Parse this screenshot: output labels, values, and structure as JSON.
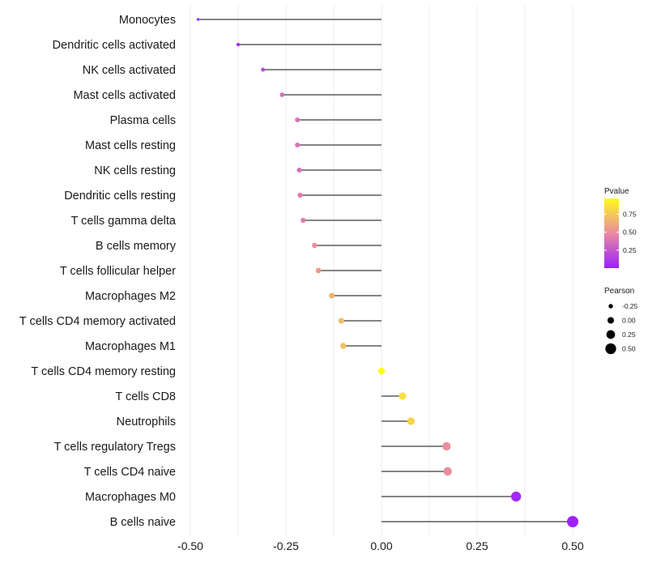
{
  "chart_data": {
    "type": "lollipop",
    "title": "",
    "xlabel": "",
    "ylabel": "",
    "xlim": [
      -0.5,
      0.5
    ],
    "x_ticks": [
      -0.5,
      -0.25,
      0.0,
      0.25,
      0.5
    ],
    "x_tick_labels": [
      "-0.50",
      "-0.25",
      "0.00",
      "0.25",
      "0.50"
    ],
    "grid": "vertical",
    "categories": [
      "Monocytes",
      "Dendritic cells activated",
      "NK cells activated",
      "Mast cells activated",
      "Plasma cells",
      "Mast cells resting",
      "NK cells resting",
      "Dendritic cells resting",
      "T cells gamma delta",
      "B cells memory",
      "T cells follicular helper",
      "Macrophages M2",
      "T cells CD4 memory activated",
      "Macrophages M1",
      "T cells CD4 memory resting",
      "T cells CD8",
      "Neutrophils",
      "T cells regulatory  Tregs ",
      "T cells CD4 naive",
      "Macrophages M0",
      "B cells naive"
    ],
    "pearson": [
      -0.48,
      -0.375,
      -0.31,
      -0.26,
      -0.22,
      -0.22,
      -0.215,
      -0.213,
      -0.205,
      -0.175,
      -0.165,
      -0.13,
      -0.105,
      -0.1,
      0.0,
      0.055,
      0.077,
      0.17,
      0.173,
      0.352,
      0.5
    ],
    "pvalue": [
      0.01,
      0.05,
      0.2,
      0.35,
      0.38,
      0.38,
      0.38,
      0.4,
      0.42,
      0.5,
      0.55,
      0.65,
      0.7,
      0.72,
      0.97,
      0.85,
      0.8,
      0.5,
      0.5,
      0.05,
      0.02
    ],
    "legend": {
      "pvalue": {
        "title": "Pvalue",
        "ticks": [
          0.25,
          0.5,
          0.75
        ],
        "tick_labels": [
          "0.25",
          "0.50",
          "0.75"
        ],
        "range": [
          0.0,
          0.97
        ],
        "colors": [
          "#9b1fff",
          "#e88ba0",
          "#fffb1c"
        ]
      },
      "pearson": {
        "title": "Pearson",
        "values": [
          -0.25,
          0.0,
          0.25,
          0.5
        ],
        "labels": [
          "-0.25",
          "0.00",
          "0.25",
          "0.50"
        ]
      },
      "position": "right"
    }
  }
}
